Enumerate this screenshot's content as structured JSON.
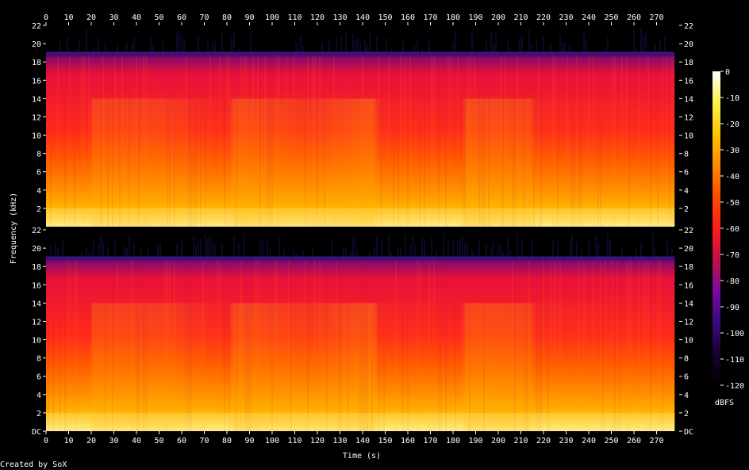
{
  "chart_data": {
    "type": "heatmap",
    "title": "",
    "xlabel": "Time (s)",
    "ylabel": "Frequency (kHz)",
    "credit": "Created by SoX",
    "xlim": [
      0,
      280
    ],
    "x_ticks": [
      "0",
      "10",
      "20",
      "30",
      "40",
      "50",
      "60",
      "70",
      "80",
      "90",
      "100",
      "110",
      "120",
      "130",
      "140",
      "150",
      "160",
      "170",
      "180",
      "190",
      "200",
      "210",
      "220",
      "230",
      "240",
      "250",
      "260",
      "270"
    ],
    "channels": [
      {
        "y_ticks": [
          "22",
          "20",
          "18",
          "16",
          "14",
          "12",
          "10",
          "8",
          "6",
          "4",
          "2"
        ],
        "ylim": [
          0,
          22
        ]
      },
      {
        "y_ticks": [
          "22",
          "20",
          "18",
          "16",
          "14",
          "12",
          "10",
          "8",
          "6",
          "4",
          "2",
          "DC"
        ],
        "ylim": [
          0,
          22
        ]
      }
    ],
    "signal_end_s": 278,
    "bandwidth_khz": 19,
    "colorbar": {
      "label": "dBFS",
      "ticks": [
        "0",
        "-10",
        "-20",
        "-30",
        "-40",
        "-50",
        "-60",
        "-70",
        "-80",
        "-90",
        "-100",
        "-110",
        "-120"
      ],
      "range": [
        -120,
        0
      ],
      "colors": [
        "#000000",
        "#1a0033",
        "#3a0a7a",
        "#7a0aa0",
        "#c0104a",
        "#ff1b1b",
        "#ff4a00",
        "#ff8a00",
        "#ffc400",
        "#fff04a",
        "#ffffff"
      ]
    }
  }
}
